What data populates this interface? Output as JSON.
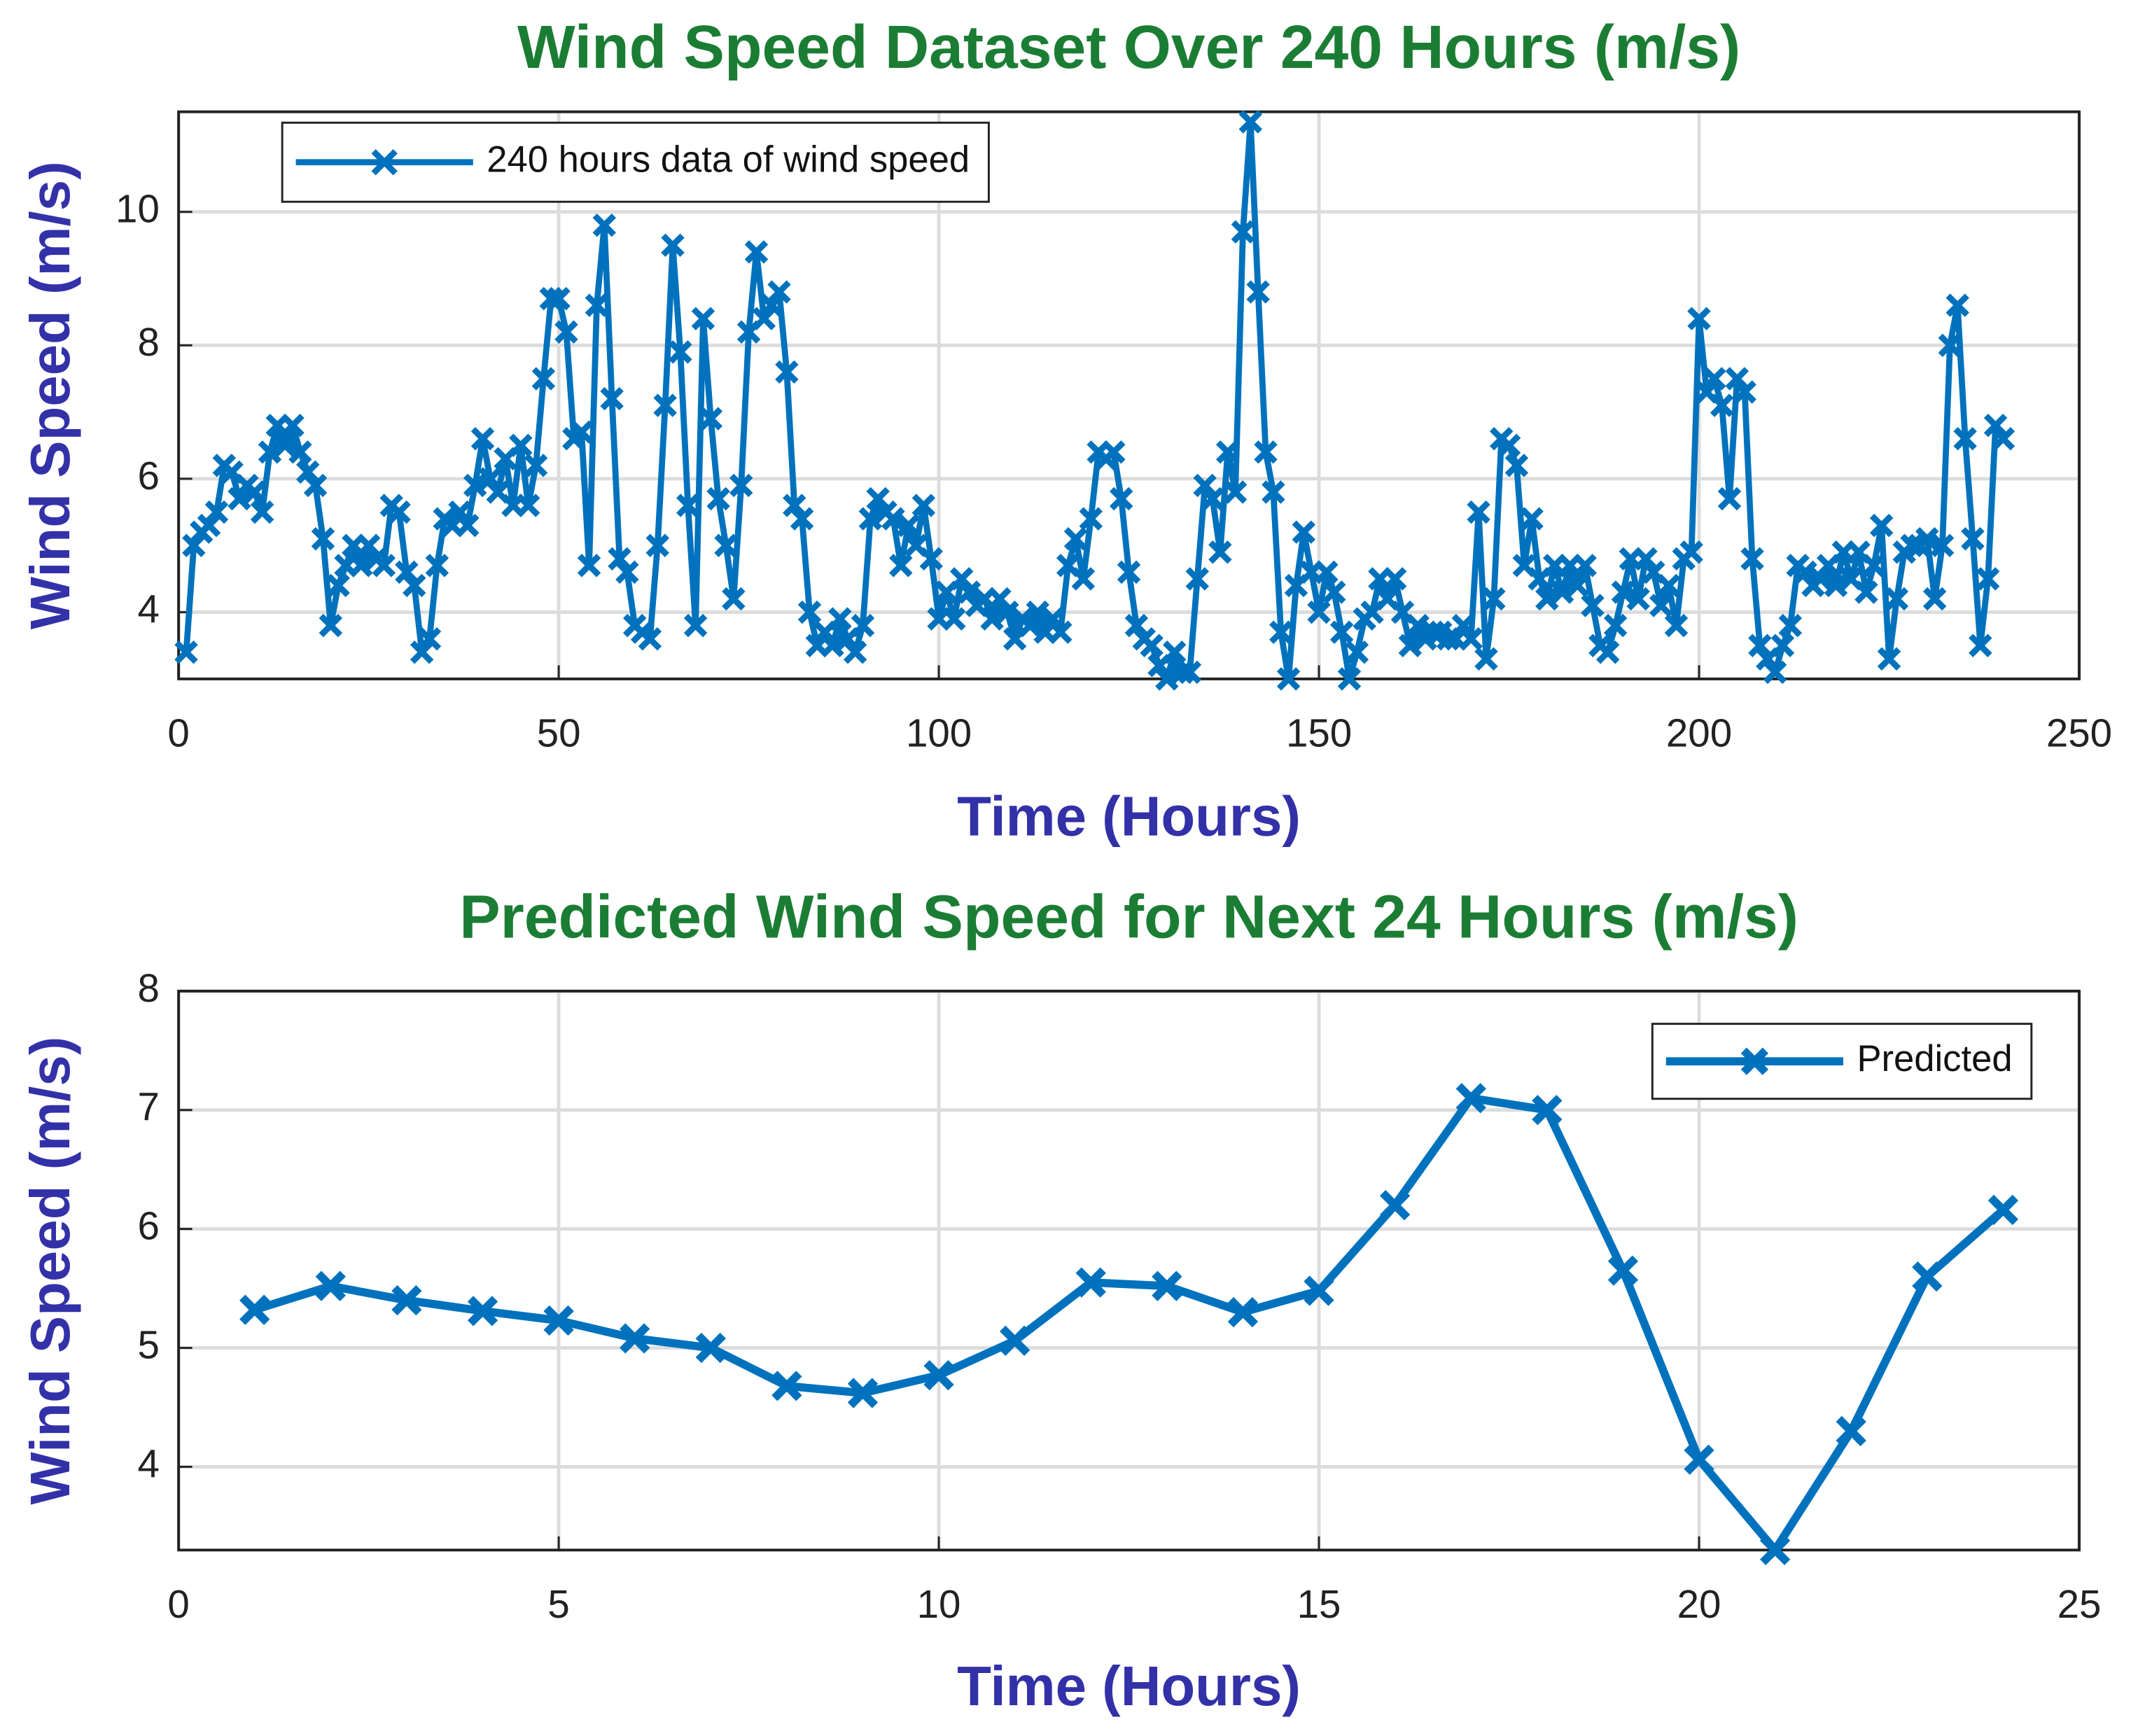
{
  "chart_data": [
    {
      "type": "line",
      "title": "Wind Speed Dataset Over 240 Hours (m/s)",
      "xlabel": "Time (Hours)",
      "ylabel": "Wind Speed (m/s)",
      "x": [
        1,
        2,
        3,
        4,
        5,
        6,
        7,
        8,
        9,
        10,
        11,
        12,
        13,
        14,
        15,
        16,
        17,
        18,
        19,
        20,
        21,
        22,
        23,
        24,
        25,
        26,
        27,
        28,
        29,
        30,
        31,
        32,
        33,
        34,
        35,
        36,
        37,
        38,
        39,
        40,
        41,
        42,
        43,
        44,
        45,
        46,
        47,
        48,
        49,
        50,
        51,
        52,
        53,
        54,
        55,
        56,
        57,
        58,
        59,
        60,
        61,
        62,
        63,
        64,
        65,
        66,
        67,
        68,
        69,
        70,
        71,
        72,
        73,
        74,
        75,
        76,
        77,
        78,
        79,
        80,
        81,
        82,
        83,
        84,
        85,
        86,
        87,
        88,
        89,
        90,
        91,
        92,
        93,
        94,
        95,
        96,
        97,
        98,
        99,
        100,
        101,
        102,
        103,
        104,
        105,
        106,
        107,
        108,
        109,
        110,
        111,
        112,
        113,
        114,
        115,
        116,
        117,
        118,
        119,
        120,
        121,
        122,
        123,
        124,
        125,
        126,
        127,
        128,
        129,
        130,
        131,
        132,
        133,
        134,
        135,
        136,
        137,
        138,
        139,
        140,
        141,
        142,
        143,
        144,
        145,
        146,
        147,
        148,
        149,
        150,
        151,
        152,
        153,
        154,
        155,
        156,
        157,
        158,
        159,
        160,
        161,
        162,
        163,
        164,
        165,
        166,
        167,
        168,
        169,
        170,
        171,
        172,
        173,
        174,
        175,
        176,
        177,
        178,
        179,
        180,
        181,
        182,
        183,
        184,
        185,
        186,
        187,
        188,
        189,
        190,
        191,
        192,
        193,
        194,
        195,
        196,
        197,
        198,
        199,
        200,
        201,
        202,
        203,
        204,
        205,
        206,
        207,
        208,
        209,
        210,
        211,
        212,
        213,
        214,
        215,
        216,
        217,
        218,
        219,
        220,
        221,
        222,
        223,
        224,
        225,
        226,
        227,
        228,
        229,
        230,
        231,
        232,
        233,
        234,
        235,
        236,
        237,
        238,
        239,
        240
      ],
      "series": [
        {
          "name": "240 hours data of wind speed",
          "color": "#0072bd",
          "values": [
            3.4,
            5.0,
            5.2,
            5.3,
            5.5,
            6.2,
            6.1,
            5.7,
            5.9,
            5.8,
            5.5,
            6.4,
            6.8,
            6.5,
            6.8,
            6.4,
            6.1,
            5.9,
            5.1,
            3.8,
            4.4,
            4.7,
            5.0,
            4.7,
            5.0,
            4.8,
            4.7,
            5.6,
            5.5,
            4.6,
            4.4,
            3.4,
            3.6,
            4.7,
            5.4,
            5.3,
            5.5,
            5.3,
            5.9,
            6.6,
            6.0,
            5.8,
            6.3,
            5.6,
            6.5,
            5.6,
            6.2,
            7.5,
            8.7,
            8.7,
            8.2,
            6.6,
            6.7,
            4.7,
            8.6,
            9.8,
            7.2,
            4.8,
            4.6,
            3.8,
            3.7,
            3.6,
            5.0,
            7.1,
            9.5,
            7.9,
            5.6,
            3.8,
            8.4,
            6.9,
            5.7,
            5.0,
            4.2,
            5.9,
            8.2,
            9.4,
            8.4,
            8.6,
            8.8,
            7.6,
            5.6,
            5.4,
            4.0,
            3.5,
            3.7,
            3.5,
            3.9,
            3.6,
            3.4,
            3.8,
            5.4,
            5.7,
            5.5,
            5.4,
            4.7,
            5.3,
            5.0,
            5.6,
            4.8,
            3.9,
            4.3,
            3.9,
            4.5,
            4.3,
            4.1,
            4.2,
            3.9,
            4.2,
            4.0,
            3.6,
            3.9,
            3.8,
            4.0,
            3.7,
            3.9,
            3.7,
            4.7,
            5.1,
            4.5,
            5.4,
            6.4,
            6.3,
            6.4,
            5.7,
            4.6,
            3.8,
            3.6,
            3.5,
            3.2,
            3.0,
            3.4,
            3.1,
            3.1,
            4.5,
            5.9,
            5.7,
            4.9,
            6.4,
            5.8,
            9.7,
            11.35,
            8.8,
            6.4,
            5.8,
            3.7,
            3.0,
            4.4,
            5.2,
            4.6,
            4.0,
            4.6,
            4.3,
            3.7,
            3.0,
            3.4,
            3.9,
            4.0,
            4.5,
            4.2,
            4.5,
            4.0,
            3.5,
            3.8,
            3.6,
            3.7,
            3.7,
            3.6,
            3.6,
            3.8,
            3.6,
            5.5,
            3.3,
            4.2,
            6.6,
            6.5,
            6.2,
            4.7,
            5.4,
            4.5,
            4.2,
            4.7,
            4.3,
            4.7,
            4.4,
            4.7,
            4.1,
            3.5,
            3.4,
            3.8,
            4.3,
            4.8,
            4.2,
            4.8,
            4.6,
            4.1,
            4.4,
            3.8,
            4.8,
            4.9,
            8.4,
            7.3,
            7.5,
            7.1,
            5.7,
            7.5,
            7.3,
            4.8,
            3.5,
            3.3,
            3.1,
            3.5,
            3.8,
            4.7,
            4.6,
            4.4,
            4.5,
            4.7,
            4.4,
            4.9,
            4.5,
            4.9,
            4.3,
            4.7,
            5.3,
            3.3,
            4.2,
            4.9,
            5.0,
            5.0,
            5.1,
            4.2,
            5.0,
            8.0,
            8.6,
            6.6,
            5.1,
            3.5,
            4.5,
            6.8,
            6.6
          ]
        }
      ],
      "xlim": [
        0,
        250
      ],
      "xticks": [
        0,
        50,
        100,
        150,
        200,
        250
      ],
      "ylim": [
        3,
        11.5
      ],
      "yticks": [
        4,
        6,
        8,
        10
      ],
      "grid": true,
      "legend": "upper left"
    },
    {
      "type": "line",
      "title": "Predicted Wind Speed for Next 24 Hours (m/s)",
      "xlabel": "Time (Hours)",
      "ylabel": "Wind Speed (m/s)",
      "x": [
        1,
        2,
        3,
        4,
        5,
        6,
        7,
        8,
        9,
        10,
        11,
        12,
        13,
        14,
        15,
        16,
        17,
        18,
        19,
        20,
        21,
        22,
        23,
        24
      ],
      "series": [
        {
          "name": "Predicted",
          "color": "#0072bd",
          "values": [
            5.32,
            5.52,
            5.4,
            5.31,
            5.23,
            5.08,
            5.0,
            4.68,
            4.62,
            4.77,
            5.06,
            5.55,
            5.52,
            5.3,
            5.48,
            6.2,
            7.1,
            7.0,
            5.65,
            4.06,
            3.3,
            4.3,
            5.6,
            6.16
          ]
        }
      ],
      "xlim": [
        0,
        25
      ],
      "xticks": [
        0,
        5,
        10,
        15,
        20,
        25
      ],
      "ylim": [
        3.3,
        8
      ],
      "yticks": [
        4,
        5,
        6,
        7,
        8
      ],
      "grid": true,
      "legend": "upper right"
    }
  ]
}
